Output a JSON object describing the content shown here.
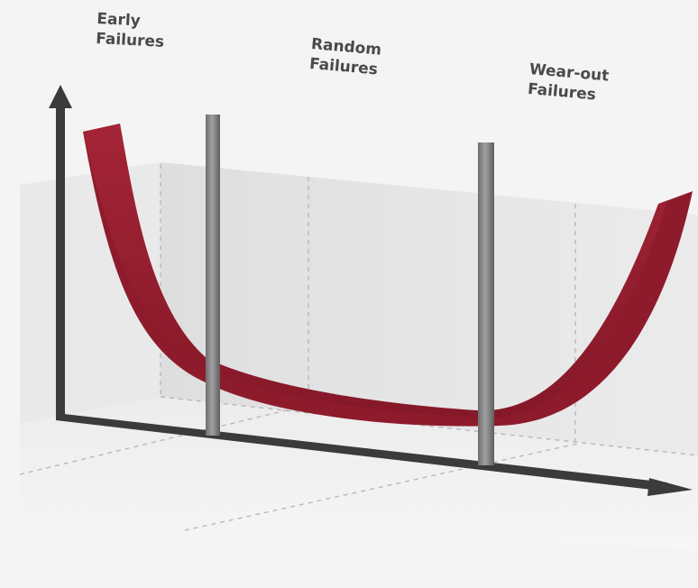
{
  "diagram": {
    "phases": [
      {
        "id": "early",
        "lines": [
          "Early",
          "Failures"
        ]
      },
      {
        "id": "random",
        "lines": [
          "Random",
          "Failures"
        ]
      },
      {
        "id": "wearout",
        "lines": [
          "Wear-out",
          "Failures"
        ]
      }
    ],
    "colors": {
      "curve": "#8e1b2c",
      "curve_edge": "#b52c3e",
      "axis": "#3b3b3b",
      "post": "#8a8a8a",
      "background": "#f4f4f4",
      "panel": "#e4e4e4"
    }
  }
}
